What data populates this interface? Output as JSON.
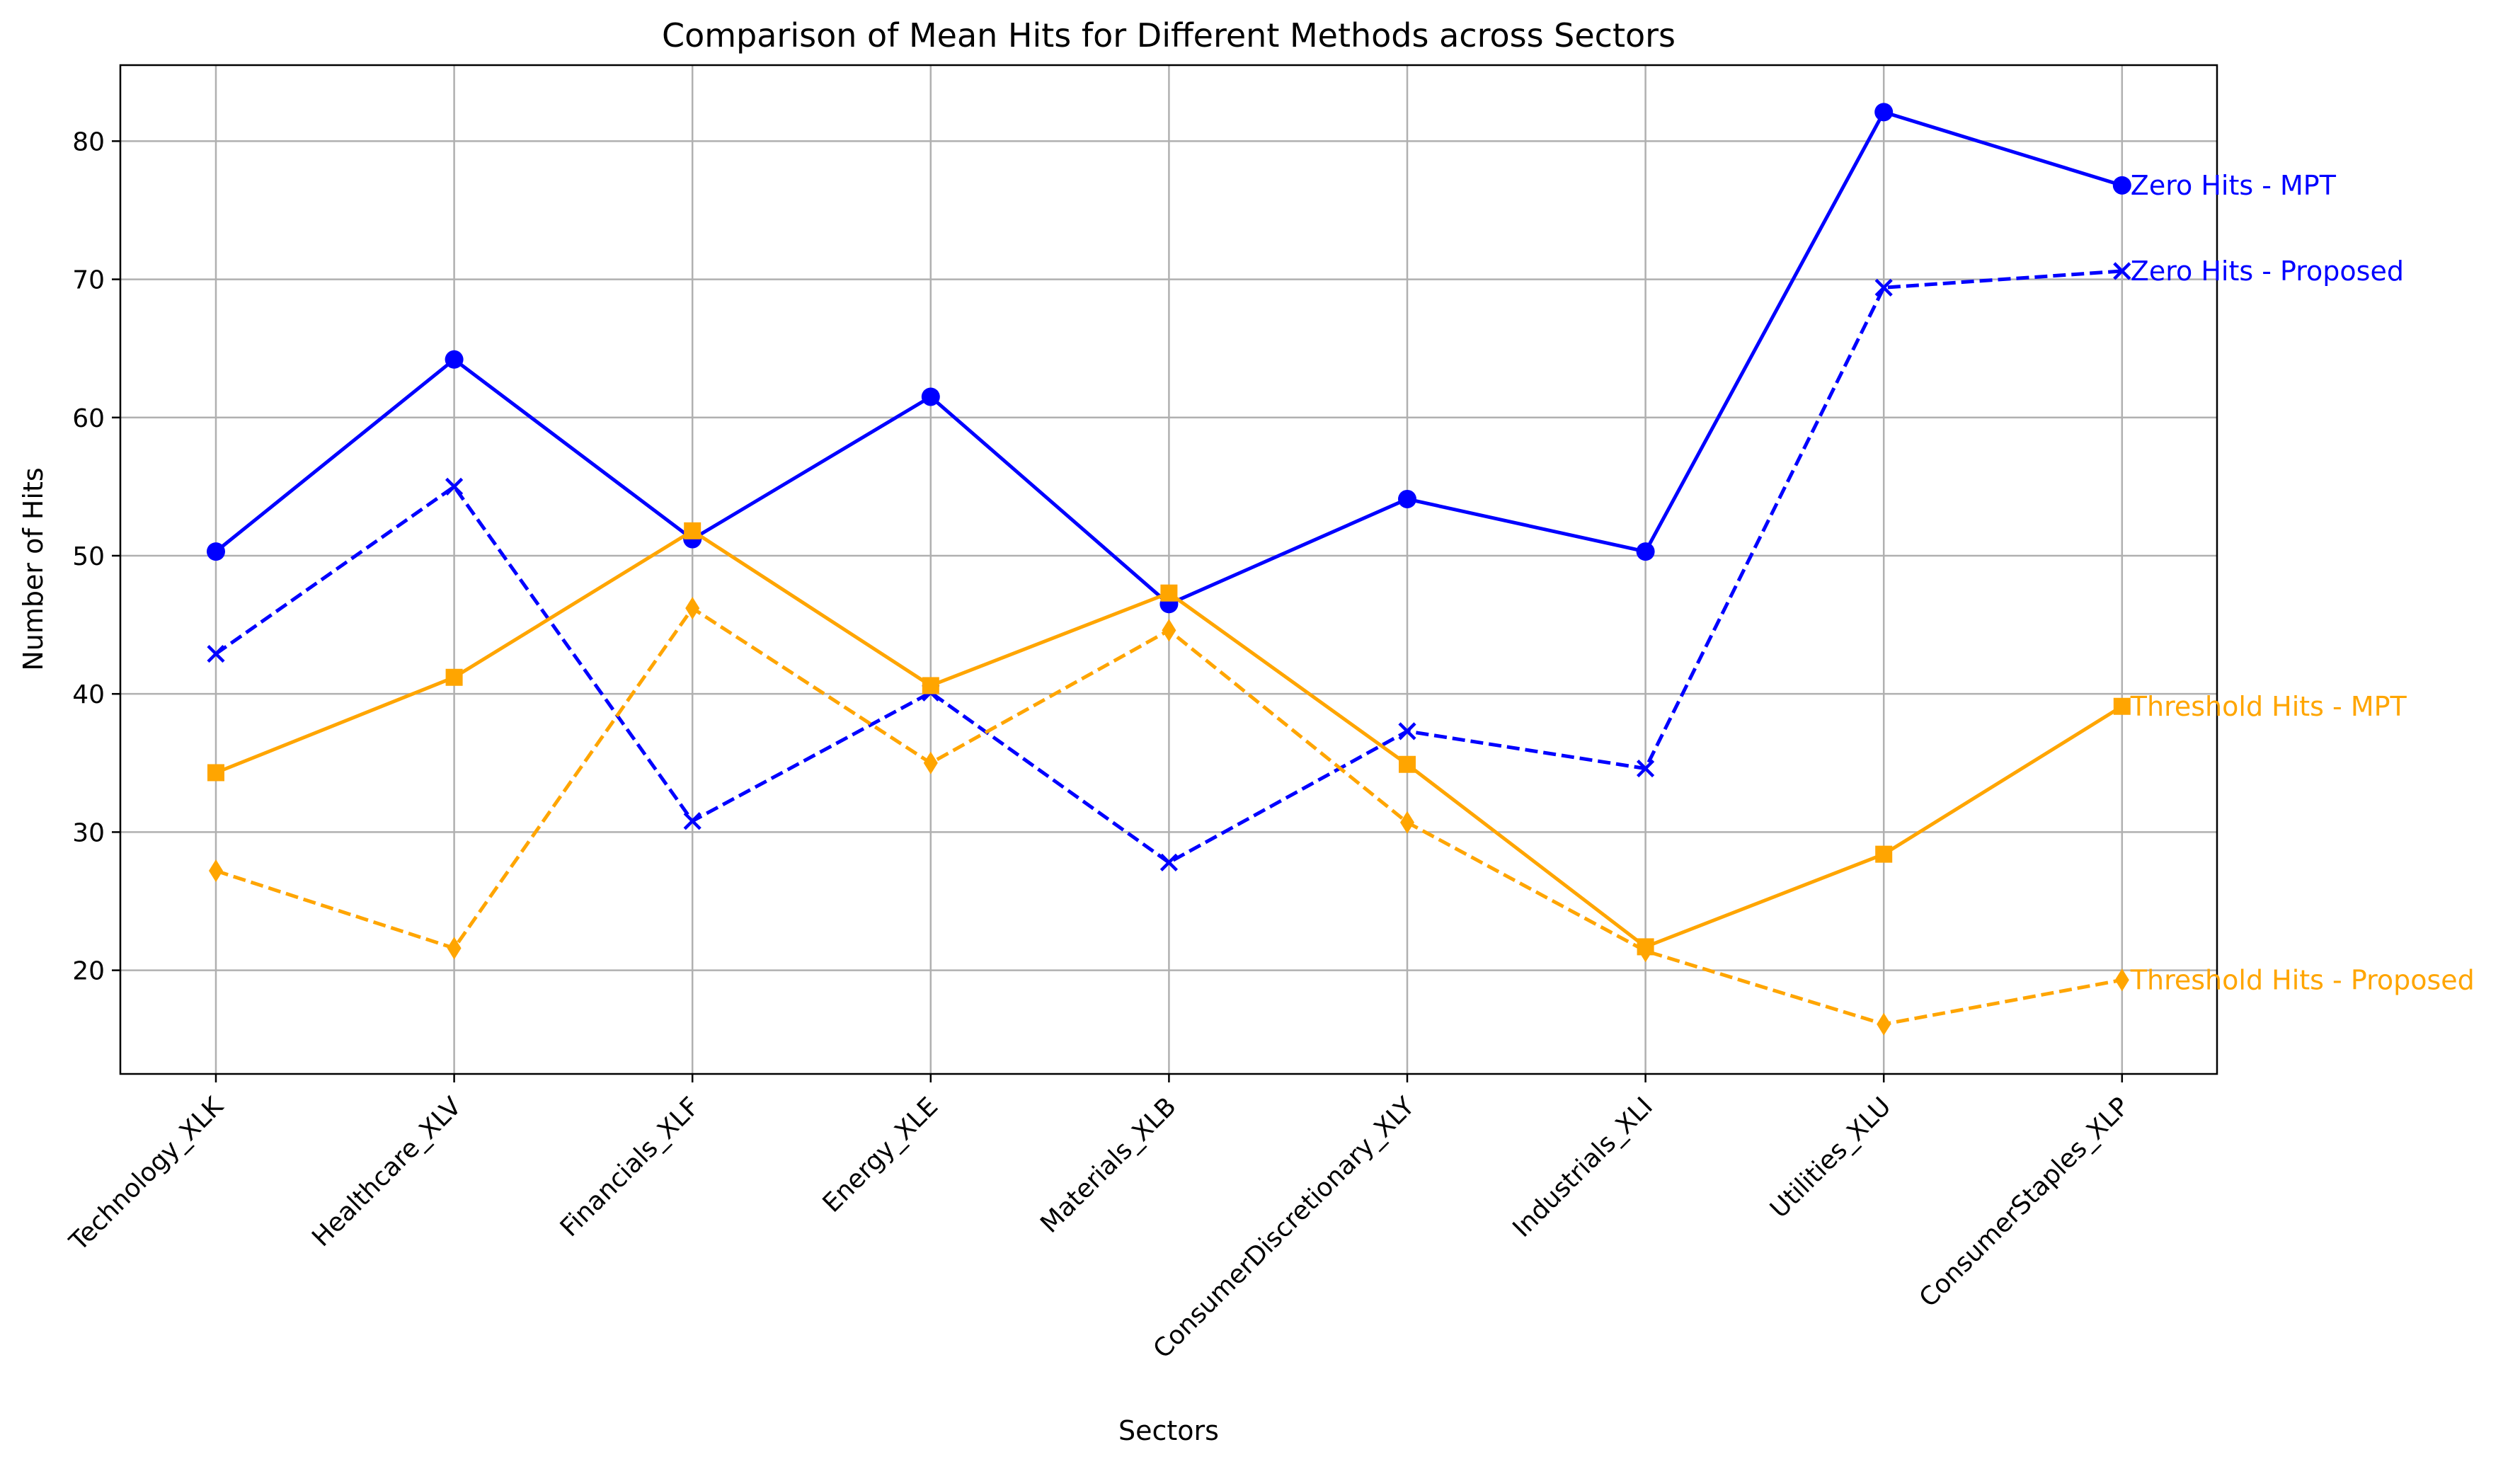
{
  "chart_data": {
    "type": "line",
    "title": "Comparison of Mean Hits for Different Methods across Sectors",
    "xlabel": "Sectors",
    "ylabel": "Number of Hits",
    "ylim": [
      12.5,
      85.5
    ],
    "yticks": [
      20,
      30,
      40,
      50,
      60,
      70,
      80
    ],
    "grid": true,
    "legend": "inline labels at right end of each series",
    "categories": [
      "Technology_XLK",
      "Healthcare_XLV",
      "Financials_XLF",
      "Energy_XLE",
      "Materials_XLB",
      "ConsumerDiscretionary_XLY",
      "Industrials_XLI",
      "Utilities_XLU",
      "ConsumerStaples_XLP"
    ],
    "series": [
      {
        "name": "Zero Hits - MPT",
        "color": "#0000ff",
        "style": "solid",
        "marker": "circle",
        "values": [
          50.3,
          64.2,
          51.2,
          61.5,
          46.5,
          54.1,
          50.3,
          82.1,
          76.8
        ]
      },
      {
        "name": "Zero Hits - Proposed",
        "color": "#0000ff",
        "style": "dashed",
        "marker": "x",
        "values": [
          42.9,
          55.0,
          30.8,
          40.1,
          27.8,
          37.3,
          34.6,
          69.4,
          70.6
        ]
      },
      {
        "name": "Threshold Hits - MPT",
        "color": "#ffa500",
        "style": "solid",
        "marker": "square",
        "values": [
          34.3,
          41.2,
          51.8,
          40.6,
          47.3,
          34.9,
          21.7,
          28.4,
          39.1
        ]
      },
      {
        "name": "Threshold Hits - Proposed",
        "color": "#ffa500",
        "style": "dashed",
        "marker": "diamond",
        "values": [
          27.2,
          21.6,
          46.2,
          35.0,
          44.6,
          30.7,
          21.4,
          16.1,
          19.3
        ]
      }
    ]
  }
}
